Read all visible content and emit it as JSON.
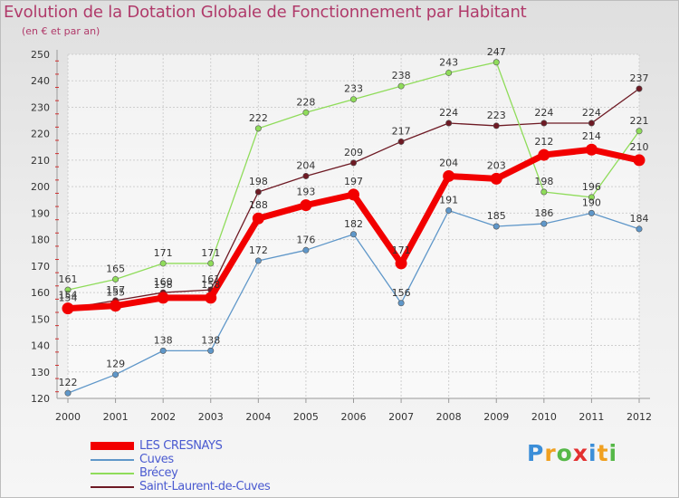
{
  "chart_data": {
    "type": "line",
    "title": "Evolution de la Dotation Globale de Fonctionnement par Habitant",
    "subtitle": "(en € et par an)",
    "xlabel": "",
    "ylabel": "",
    "categories": [
      "2000",
      "2001",
      "2002",
      "2003",
      "2004",
      "2005",
      "2006",
      "2007",
      "2008",
      "2009",
      "2010",
      "2011",
      "2012"
    ],
    "ylim": [
      120,
      250
    ],
    "yticks": [
      120,
      130,
      140,
      150,
      160,
      170,
      180,
      190,
      200,
      210,
      220,
      230,
      240,
      250
    ],
    "grid": true,
    "legend_position": "bottom-left",
    "series": [
      {
        "name": "Saint-Laurent-de-Cuves",
        "color": "#6e1a24",
        "values": [
          154,
          157,
          160,
          161,
          198,
          204,
          209,
          217,
          224,
          223,
          224,
          224,
          237
        ]
      },
      {
        "name": "Brécey",
        "color": "#8fdc5a",
        "values": [
          161,
          165,
          171,
          171,
          222,
          228,
          233,
          238,
          243,
          247,
          198,
          196,
          221
        ]
      },
      {
        "name": "Cuves",
        "color": "#5f97c9",
        "values": [
          122,
          129,
          138,
          138,
          172,
          176,
          182,
          156,
          191,
          185,
          186,
          190,
          184
        ]
      },
      {
        "name": "LES CRESNAYS",
        "color": "#f20000",
        "values": [
          154,
          155,
          158,
          158,
          188,
          193,
          197,
          171,
          204,
          203,
          212,
          214,
          210
        ]
      }
    ],
    "legend_order": [
      "LES CRESNAYS",
      "Cuves",
      "Brécey",
      "Saint-Laurent-de-Cuves"
    ]
  },
  "logo": {
    "letters": [
      "P",
      "r",
      "o",
      "x",
      "i",
      "t",
      "i"
    ],
    "colors": [
      "#3b8ed8",
      "#f0a020",
      "#56b848",
      "#e33030",
      "#3b8ed8",
      "#f0a020",
      "#56b848"
    ]
  }
}
